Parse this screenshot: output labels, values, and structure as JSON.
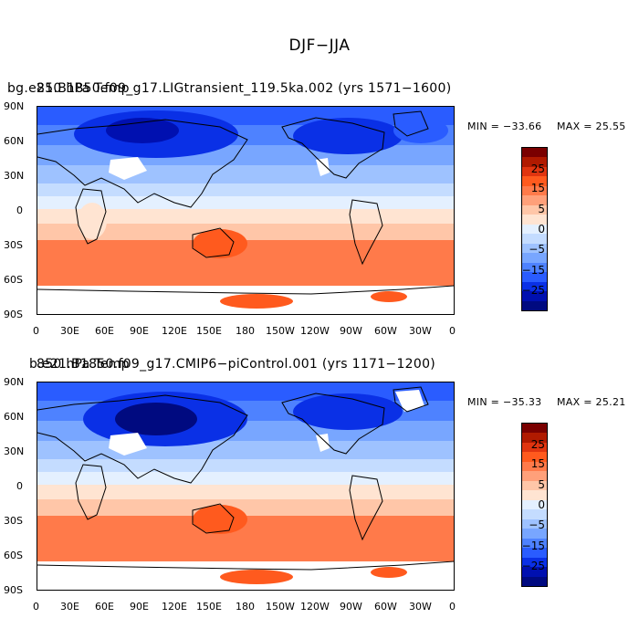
{
  "title": "DJF−JJA",
  "panels": [
    {
      "subtitle": "bg.e21.B1850.f09_g17.LIGtransient_119.5ka.002 (yrs 1571−1600)",
      "overprint": "850 hPa Temp",
      "min_label": "MIN = −33.66",
      "max_label": "MAX =  25.55"
    },
    {
      "subtitle": "b.e21.B1850.f09_g17.CMIP6−piControl.001 (yrs 1171−1200)",
      "overprint": "850 hPa Temp",
      "min_label": "MIN = −35.33",
      "max_label": "MAX =  25.21"
    }
  ],
  "lon_ticks": [
    "0",
    "30E",
    "60E",
    "90E",
    "120E",
    "150E",
    "180",
    "150W",
    "120W",
    "90W",
    "60W",
    "30W",
    "0"
  ],
  "lat_ticks": [
    "90N",
    "60N",
    "30N",
    "0",
    "30S",
    "60S",
    "90S"
  ],
  "colorbar_labels": [
    "25",
    "15",
    "5",
    "0",
    "−5",
    "−15",
    "−25"
  ],
  "colorbar_colors": [
    "#7a0000",
    "#b01a00",
    "#e03510",
    "#ff5a1e",
    "#ff7a4a",
    "#ffa07a",
    "#ffc6a8",
    "#ffe4d2",
    "#e4f0ff",
    "#c4dcff",
    "#9ec2ff",
    "#78a6ff",
    "#4e82ff",
    "#2a5cff",
    "#0a30e6",
    "#0010b0",
    "#000a80"
  ],
  "chart_data": {
    "type": "heatmap",
    "title": "DJF−JJA",
    "panels": [
      {
        "label": "bg.e21.B1850.f09_g17.LIGtransient_119.5ka.002 (yrs 1571−1600)",
        "min": -33.66,
        "max": 25.55
      },
      {
        "label": "b.e21.B1850.f09_g17.CMIP6−piControl.001 (yrs 1171−1200)",
        "min": -35.33,
        "max": 25.21
      }
    ],
    "x_ticks": [
      "0",
      "30E",
      "60E",
      "90E",
      "120E",
      "150E",
      "180",
      "150W",
      "120W",
      "90W",
      "60W",
      "30W",
      "0"
    ],
    "y_ticks": [
      "90N",
      "60N",
      "30N",
      "0",
      "30S",
      "60S",
      "90S"
    ],
    "xlim": [
      0,
      360
    ],
    "ylim": [
      -90,
      90
    ],
    "colorbar_ticks": [
      25,
      15,
      5,
      0,
      -5,
      -15,
      -25
    ],
    "colorscale": "blue-white-red diverging"
  }
}
